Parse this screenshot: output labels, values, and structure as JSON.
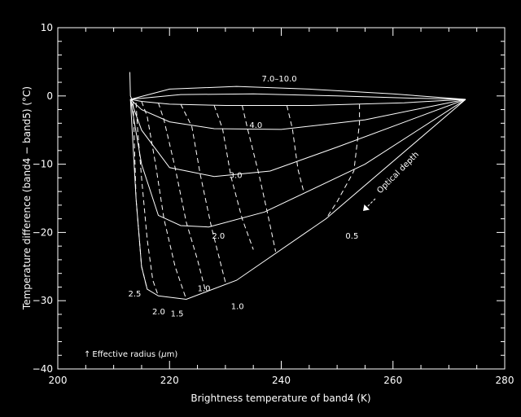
{
  "chart_data": {
    "type": "line",
    "title": "",
    "xlabel": "Brightness temperature of band4 (K)",
    "ylabel": "Temperature difference (band4 − band5) (°C)",
    "xlim": [
      200,
      280
    ],
    "ylim": [
      -40,
      10
    ],
    "xticks": [
      "200",
      "220",
      "240",
      "260",
      "280"
    ],
    "yticks": [
      "10",
      "0",
      "−10",
      "−20",
      "−30",
      "−40"
    ],
    "grid": false,
    "series": [
      {
        "name": "",
        "style": "solid",
        "points": [
          [
            212.9,
            3.5
          ],
          [
            213.0,
            0
          ],
          [
            213.5,
            -1
          ]
        ]
      },
      {
        "name": "",
        "style": "solid",
        "points": [
          [
            213.0,
            -0.5
          ],
          [
            220,
            1
          ],
          [
            232,
            1.4
          ],
          [
            245,
            1.0
          ],
          [
            260,
            0.3
          ],
          [
            273,
            -0.5
          ]
        ]
      },
      {
        "name": "",
        "style": "solid",
        "points": [
          [
            213.0,
            -0.5
          ],
          [
            222,
            0.2
          ],
          [
            235,
            0.3
          ],
          [
            250,
            0
          ],
          [
            262,
            -0.3
          ],
          [
            273,
            -0.5
          ]
        ]
      },
      {
        "name": "",
        "style": "solid",
        "points": [
          [
            213.0,
            -0.5
          ],
          [
            215,
            -0.8
          ],
          [
            220,
            -1.2
          ],
          [
            230,
            -1.4
          ],
          [
            245,
            -1.4
          ],
          [
            262,
            -1.0
          ],
          [
            273,
            -0.5
          ]
        ]
      },
      {
        "name": "",
        "style": "solid",
        "points": [
          [
            213.0,
            -0.5
          ],
          [
            215,
            -2
          ],
          [
            220,
            -3.8
          ],
          [
            228,
            -4.8
          ],
          [
            240,
            -4.9
          ],
          [
            255,
            -3.5
          ],
          [
            273,
            -0.5
          ]
        ]
      },
      {
        "name": "",
        "style": "solid",
        "points": [
          [
            213.0,
            -0.5
          ],
          [
            215,
            -5
          ],
          [
            220,
            -10.5
          ],
          [
            228,
            -11.8
          ],
          [
            238,
            -11
          ],
          [
            250,
            -7.5
          ],
          [
            273,
            -0.5
          ]
        ]
      },
      {
        "name": "",
        "style": "solid",
        "points": [
          [
            213.0,
            -0.5
          ],
          [
            215,
            -10
          ],
          [
            218,
            -17.5
          ],
          [
            222,
            -19
          ],
          [
            227,
            -19.2
          ],
          [
            237,
            -17
          ],
          [
            255,
            -10
          ],
          [
            273,
            -0.5
          ]
        ]
      },
      {
        "name": "",
        "style": "solid",
        "points": [
          [
            213.0,
            -0.5
          ],
          [
            214,
            -15
          ],
          [
            215,
            -25
          ],
          [
            216,
            -28.3
          ],
          [
            218,
            -29.3
          ],
          [
            223,
            -29.8
          ],
          [
            232,
            -27
          ],
          [
            248,
            -18
          ],
          [
            273,
            -0.5
          ]
        ]
      },
      {
        "name": "",
        "style": "dashed",
        "points": [
          [
            213.5,
            -1
          ],
          [
            214,
            -15
          ],
          [
            215,
            -25
          ],
          [
            216,
            -28.3
          ]
        ]
      },
      {
        "name": "",
        "style": "dashed",
        "points": [
          [
            214,
            -1
          ],
          [
            214.3,
            -5
          ],
          [
            215,
            -12
          ],
          [
            216,
            -21
          ],
          [
            217,
            -27
          ],
          [
            218,
            -29.3
          ]
        ]
      },
      {
        "name": "",
        "style": "dashed",
        "points": [
          [
            215,
            -0.8
          ],
          [
            216,
            -3
          ],
          [
            217.5,
            -10
          ],
          [
            219,
            -18
          ],
          [
            221,
            -25
          ],
          [
            223,
            -29.8
          ]
        ]
      },
      {
        "name": "",
        "style": "dashed",
        "points": [
          [
            218,
            -1
          ],
          [
            219,
            -3.5
          ],
          [
            221,
            -10.5
          ],
          [
            223,
            -18.5
          ],
          [
            225,
            -24
          ],
          [
            226.5,
            -28.8
          ]
        ]
      },
      {
        "name": "",
        "style": "dashed",
        "points": [
          [
            222,
            -1.2
          ],
          [
            224,
            -4.5
          ],
          [
            225.5,
            -11.5
          ],
          [
            227.5,
            -19.2
          ],
          [
            230,
            -27.3
          ]
        ]
      },
      {
        "name": "",
        "style": "dashed",
        "points": [
          [
            228,
            -1.4
          ],
          [
            229.5,
            -4.8
          ],
          [
            231,
            -11.8
          ],
          [
            233,
            -18
          ],
          [
            235,
            -22.5
          ]
        ]
      },
      {
        "name": "",
        "style": "dashed",
        "points": [
          [
            233,
            -1.4
          ],
          [
            234,
            -4.9
          ],
          [
            236,
            -11.5
          ],
          [
            237.5,
            -17
          ],
          [
            239,
            -22.8
          ]
        ]
      },
      {
        "name": "",
        "style": "dashed",
        "points": [
          [
            241,
            -1.4
          ],
          [
            242,
            -4.8
          ],
          [
            243,
            -10.8
          ],
          [
            244,
            -14
          ]
        ]
      },
      {
        "name": "",
        "style": "dashed",
        "points": [
          [
            254,
            -1.2
          ],
          [
            254,
            -4
          ],
          [
            253,
            -11
          ],
          [
            250,
            -15.5
          ],
          [
            248,
            -18
          ]
        ]
      }
    ],
    "annotations": [
      {
        "text": "7.0–10.0",
        "x": 236.5,
        "y": 2.1
      },
      {
        "text": "4.0",
        "x": 234.3,
        "y": -4.7
      },
      {
        "text": "3.0",
        "x": 230.7,
        "y": -12.0
      },
      {
        "text": "2.0",
        "x": 227.6,
        "y": -20.9
      },
      {
        "text": "0.5",
        "x": 251.5,
        "y": -20.9
      },
      {
        "text": "1.0",
        "x": 225.0,
        "y": -28.6
      },
      {
        "text": "1.0",
        "x": 231.0,
        "y": -31.2
      },
      {
        "text": "2.5",
        "x": 212.6,
        "y": -29.4
      },
      {
        "text": "2.0",
        "x": 216.9,
        "y": -32.0
      },
      {
        "text": "1.5",
        "x": 220.2,
        "y": -32.3
      }
    ],
    "arrow_label": "Optical depth",
    "footnote": {
      "arrow": "↑",
      "prefix": "Effective radius (",
      "mu": "μ",
      "suffix": "m)"
    }
  }
}
